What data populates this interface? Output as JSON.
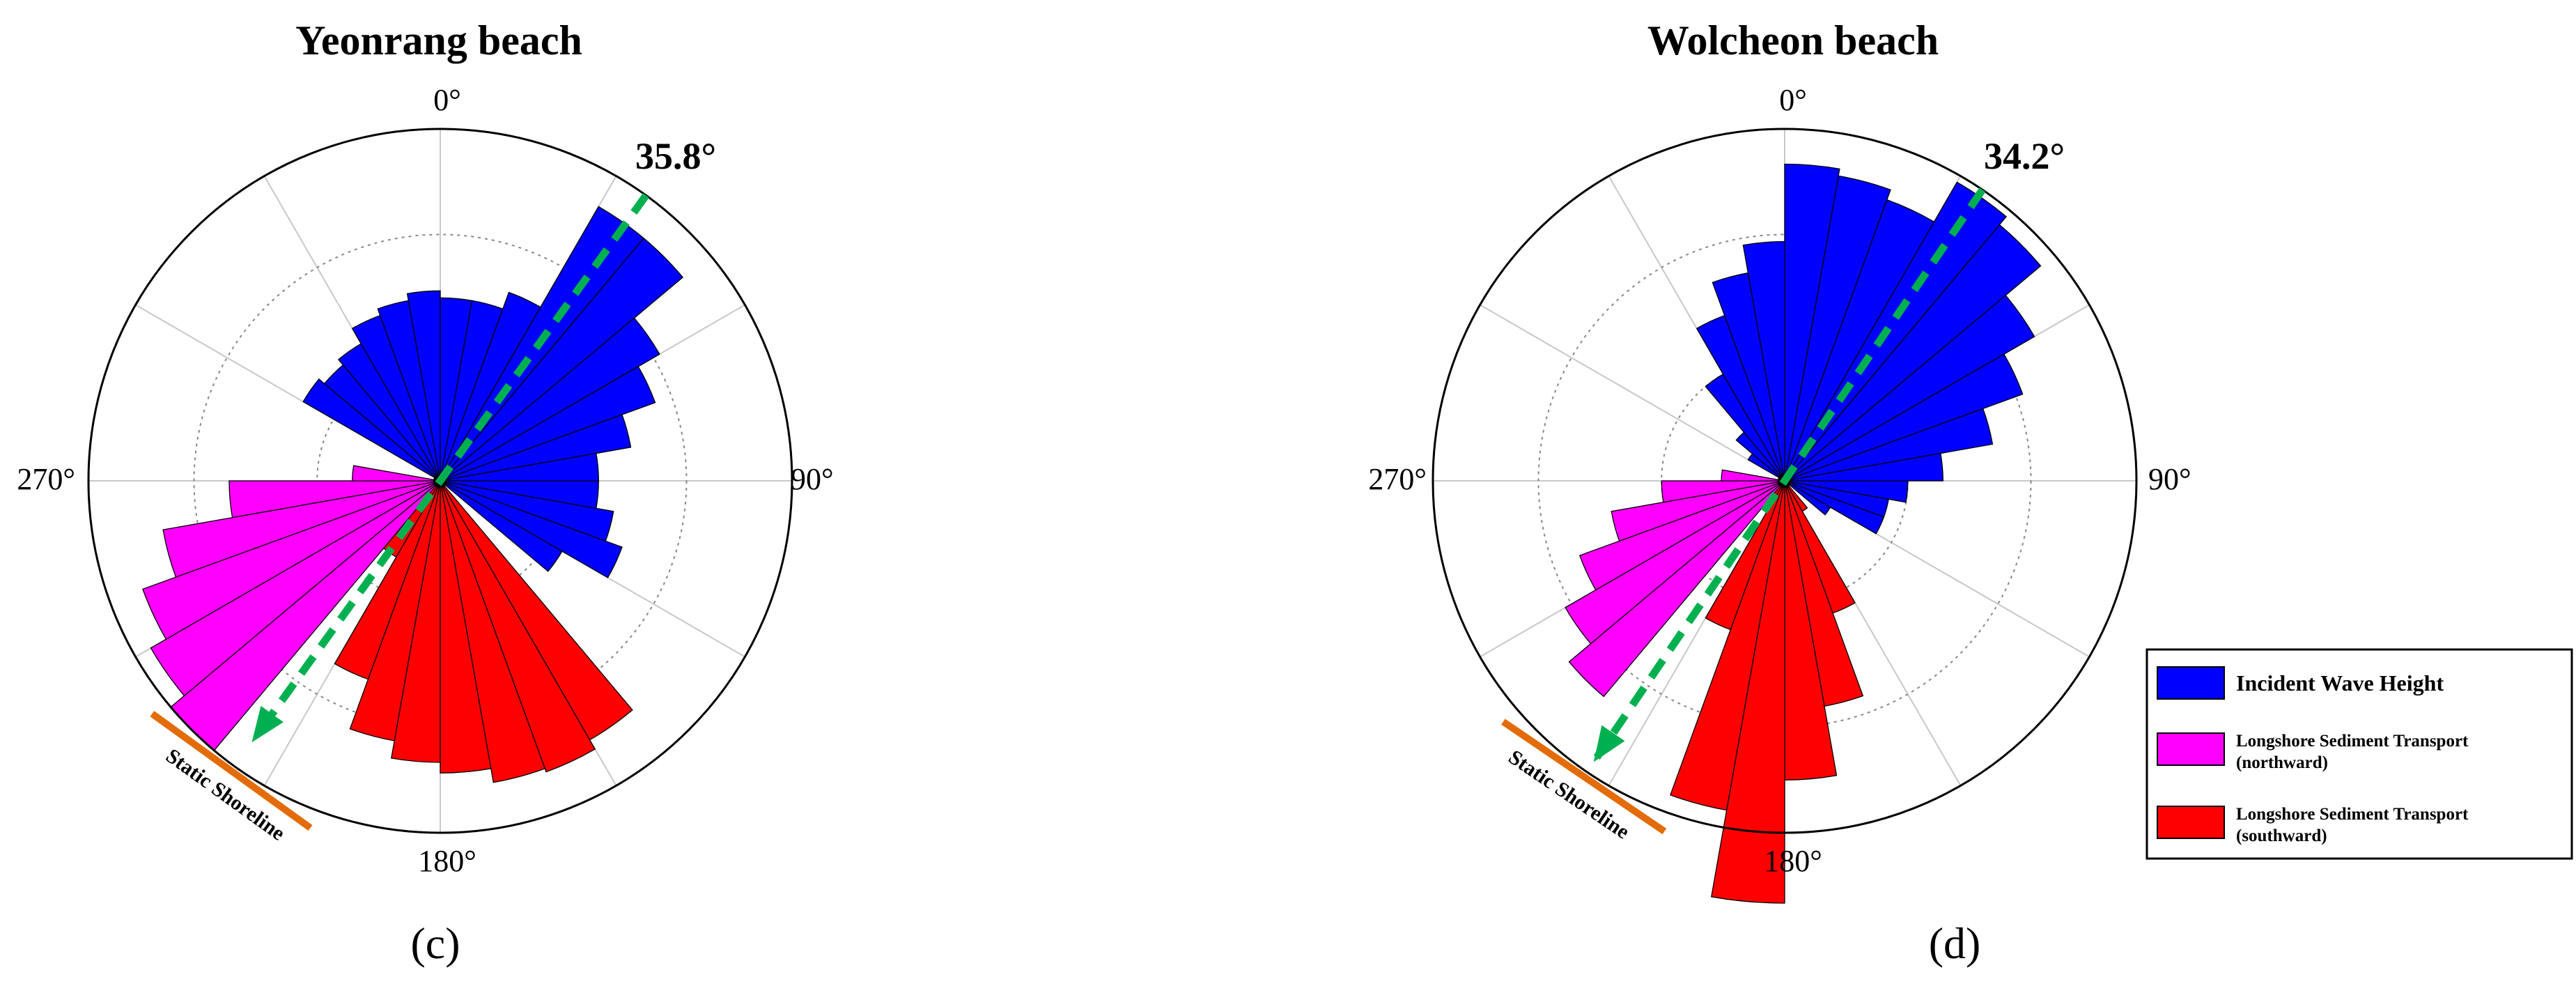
{
  "colors": {
    "incident": "#0000ff",
    "northward": "#ff00ff",
    "southward": "#ff0000",
    "axis_arrow": "#00b050",
    "shoreline": "#e36c09",
    "grid": "#c8c8c8",
    "frame": "#000000"
  },
  "legend": {
    "incident": "Incident Wave Height",
    "northward_line1": "Longshore Sediment Transport",
    "northward_line2": "(northward)",
    "southward_line1": "Longshore Sediment Transport",
    "southward_line2": "(southward)"
  },
  "chart_data": [
    {
      "type": "polar-bar (wave rose)",
      "title": "Yeonrang beach",
      "panel_label": "(c)",
      "angle_labels": [
        "0°",
        "90°",
        "180°",
        "270°"
      ],
      "direction_convention": "clockwise from north (0°), 10° bins",
      "r_max": 1.0,
      "rings": [
        0.35,
        0.7,
        1.0
      ],
      "grid": true,
      "highlight_angle": {
        "label": "35.8°",
        "value_deg": 35.8,
        "to_deg": 215.8,
        "r_end": 0.9
      },
      "shoreline_label": "Static Shoreline",
      "series": [
        {
          "name": "Incident Wave Height",
          "key": "incident",
          "bin_width_deg": 10,
          "start_deg": [
            300,
            310,
            320,
            330,
            340,
            350,
            0,
            10,
            20,
            30,
            40,
            50,
            60,
            70,
            80,
            90,
            100,
            110,
            120
          ],
          "values": [
            0.45,
            0.43,
            0.45,
            0.5,
            0.52,
            0.54,
            0.52,
            0.52,
            0.57,
            0.9,
            0.9,
            0.72,
            0.65,
            0.55,
            0.45,
            0.45,
            0.5,
            0.55,
            0.4
          ]
        },
        {
          "name": "Longshore Sediment Transport (northward)",
          "key": "northward",
          "bin_width_deg": 10,
          "start_deg": [
            220,
            230,
            240,
            250,
            260,
            270
          ],
          "values": [
            1.0,
            0.95,
            0.9,
            0.8,
            0.6,
            0.25
          ]
        },
        {
          "name": "Longshore Sediment Transport (southward)",
          "key": "southward",
          "bin_width_deg": 10,
          "start_deg": [
            140,
            150,
            160,
            170,
            180,
            190,
            200,
            210
          ],
          "values": [
            0.85,
            0.88,
            0.87,
            0.83,
            0.8,
            0.75,
            0.6,
            0.25
          ]
        }
      ]
    },
    {
      "type": "polar-bar (wave rose)",
      "title": "Wolcheon beach",
      "panel_label": "(d)",
      "angle_labels": [
        "0°",
        "90°",
        "180°",
        "270°"
      ],
      "direction_convention": "clockwise from north (0°), 10° bins",
      "r_max": 1.0,
      "rings": [
        0.35,
        0.7,
        1.0
      ],
      "grid": true,
      "highlight_angle": {
        "label": "34.2°",
        "value_deg": 34.2,
        "to_deg": 214.2,
        "r_end": 0.95
      },
      "shoreline_label": "Static Shoreline",
      "series": [
        {
          "name": "Incident Wave Height",
          "key": "incident",
          "bin_width_deg": 10,
          "start_deg": [
            300,
            310,
            320,
            330,
            340,
            350,
            0,
            10,
            20,
            30,
            40,
            50,
            60,
            70,
            80,
            90,
            100,
            110,
            120
          ],
          "values": [
            0.12,
            0.18,
            0.35,
            0.5,
            0.6,
            0.68,
            0.9,
            0.88,
            0.85,
            0.98,
            0.95,
            0.82,
            0.72,
            0.6,
            0.45,
            0.35,
            0.3,
            0.3,
            0.15
          ]
        },
        {
          "name": "Longshore Sediment Transport (northward)",
          "key": "northward",
          "bin_width_deg": 10,
          "start_deg": [
            220,
            230,
            240,
            250,
            260,
            270
          ],
          "values": [
            0.8,
            0.72,
            0.62,
            0.5,
            0.35,
            0.18
          ]
        },
        {
          "name": "Longshore Sediment Transport (southward)",
          "key": "southward",
          "bin_width_deg": 10,
          "start_deg": [
            140,
            150,
            160,
            170,
            180,
            190,
            200,
            210
          ],
          "values": [
            0.1,
            0.4,
            0.65,
            0.85,
            1.2,
            0.95,
            0.45,
            0.1
          ]
        }
      ]
    }
  ]
}
